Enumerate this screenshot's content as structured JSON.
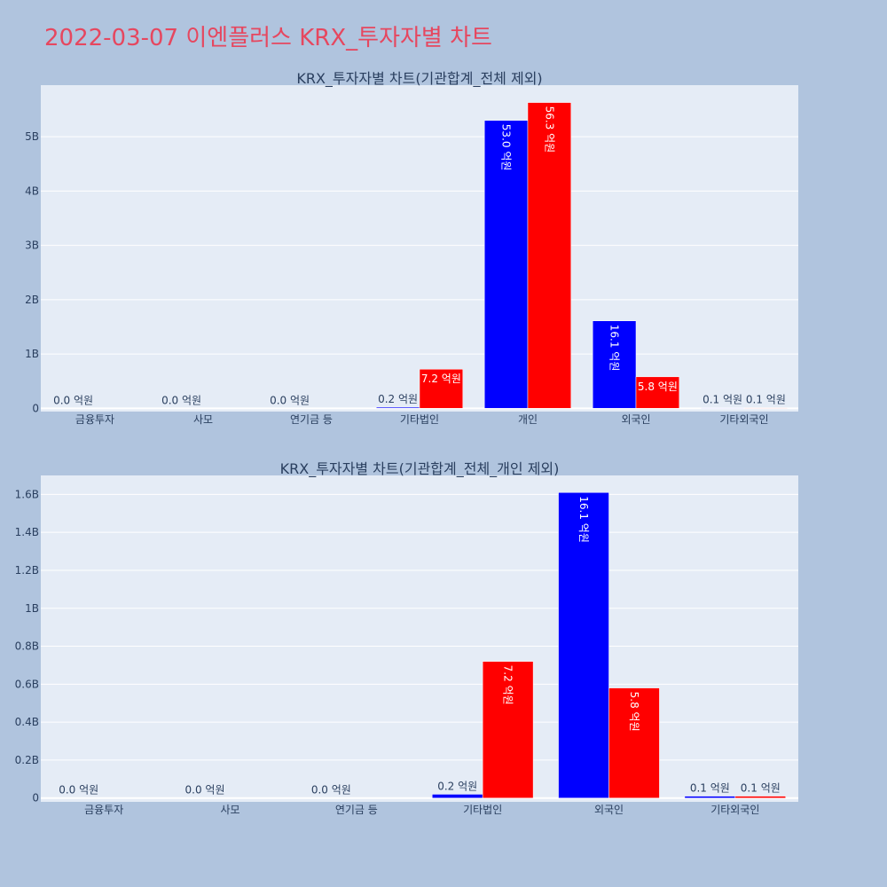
{
  "page_title": "2022-03-07 이엔플러스 KRX_투자자별 차트",
  "colors": {
    "series_1": "#0000ff",
    "series_2": "#ff0000",
    "plot_bg": "#e5ecf6",
    "page_bg": "#b0c4de",
    "title": "#e6475f"
  },
  "chart_data": [
    {
      "type": "bar",
      "title": "KRX_투자자별 차트(기관합계_전체 제외)",
      "categories": [
        "금융투자",
        "사모",
        "연기금 등",
        "기타법인",
        "개인",
        "외국인",
        "기타외국인"
      ],
      "series": [
        {
          "values": [
            0,
            0,
            0,
            20000000,
            5300000000,
            1610000000,
            10000000
          ],
          "labels": [
            "0.0 억원",
            "0.0 억원",
            "0.0 억원",
            "0.2 억원",
            "53.0 억원",
            "16.1 억원",
            "0.1 억원"
          ]
        },
        {
          "values": [
            0,
            0,
            0,
            720000000,
            5630000000,
            580000000,
            10000000
          ],
          "labels": [
            "",
            "",
            "",
            "7.2 억원",
            "56.3 억원",
            "5.8 억원",
            "0.1 억원"
          ]
        }
      ],
      "yticks": [
        0,
        1000000000,
        2000000000,
        3000000000,
        4000000000,
        5000000000
      ],
      "ytick_labels": [
        "0",
        "1B",
        "2B",
        "3B",
        "4B",
        "5B"
      ],
      "ylim": [
        -60000000,
        5950000000
      ]
    },
    {
      "type": "bar",
      "title": "KRX_투자자별 차트(기관합계_전체_개인 제외)",
      "categories": [
        "금융투자",
        "사모",
        "연기금 등",
        "기타법인",
        "외국인",
        "기타외국인"
      ],
      "series": [
        {
          "values": [
            0,
            0,
            0,
            20000000,
            1610000000,
            10000000
          ],
          "labels": [
            "0.0 억원",
            "0.0 억원",
            "0.0 억원",
            "0.2 억원",
            "16.1 억원",
            "0.1 억원"
          ]
        },
        {
          "values": [
            0,
            0,
            0,
            720000000,
            580000000,
            10000000
          ],
          "labels": [
            "",
            "",
            "",
            "7.2 억원",
            "5.8 억원",
            "0.1 억원"
          ]
        }
      ],
      "yticks": [
        0,
        200000000,
        400000000,
        600000000,
        800000000,
        1000000000,
        1200000000,
        1400000000,
        1600000000
      ],
      "ytick_labels": [
        "0",
        "0.2B",
        "0.4B",
        "0.6B",
        "0.8B",
        "1B",
        "1.2B",
        "1.4B",
        "1.6B"
      ],
      "ylim": [
        -20000000,
        1700000000
      ]
    }
  ]
}
